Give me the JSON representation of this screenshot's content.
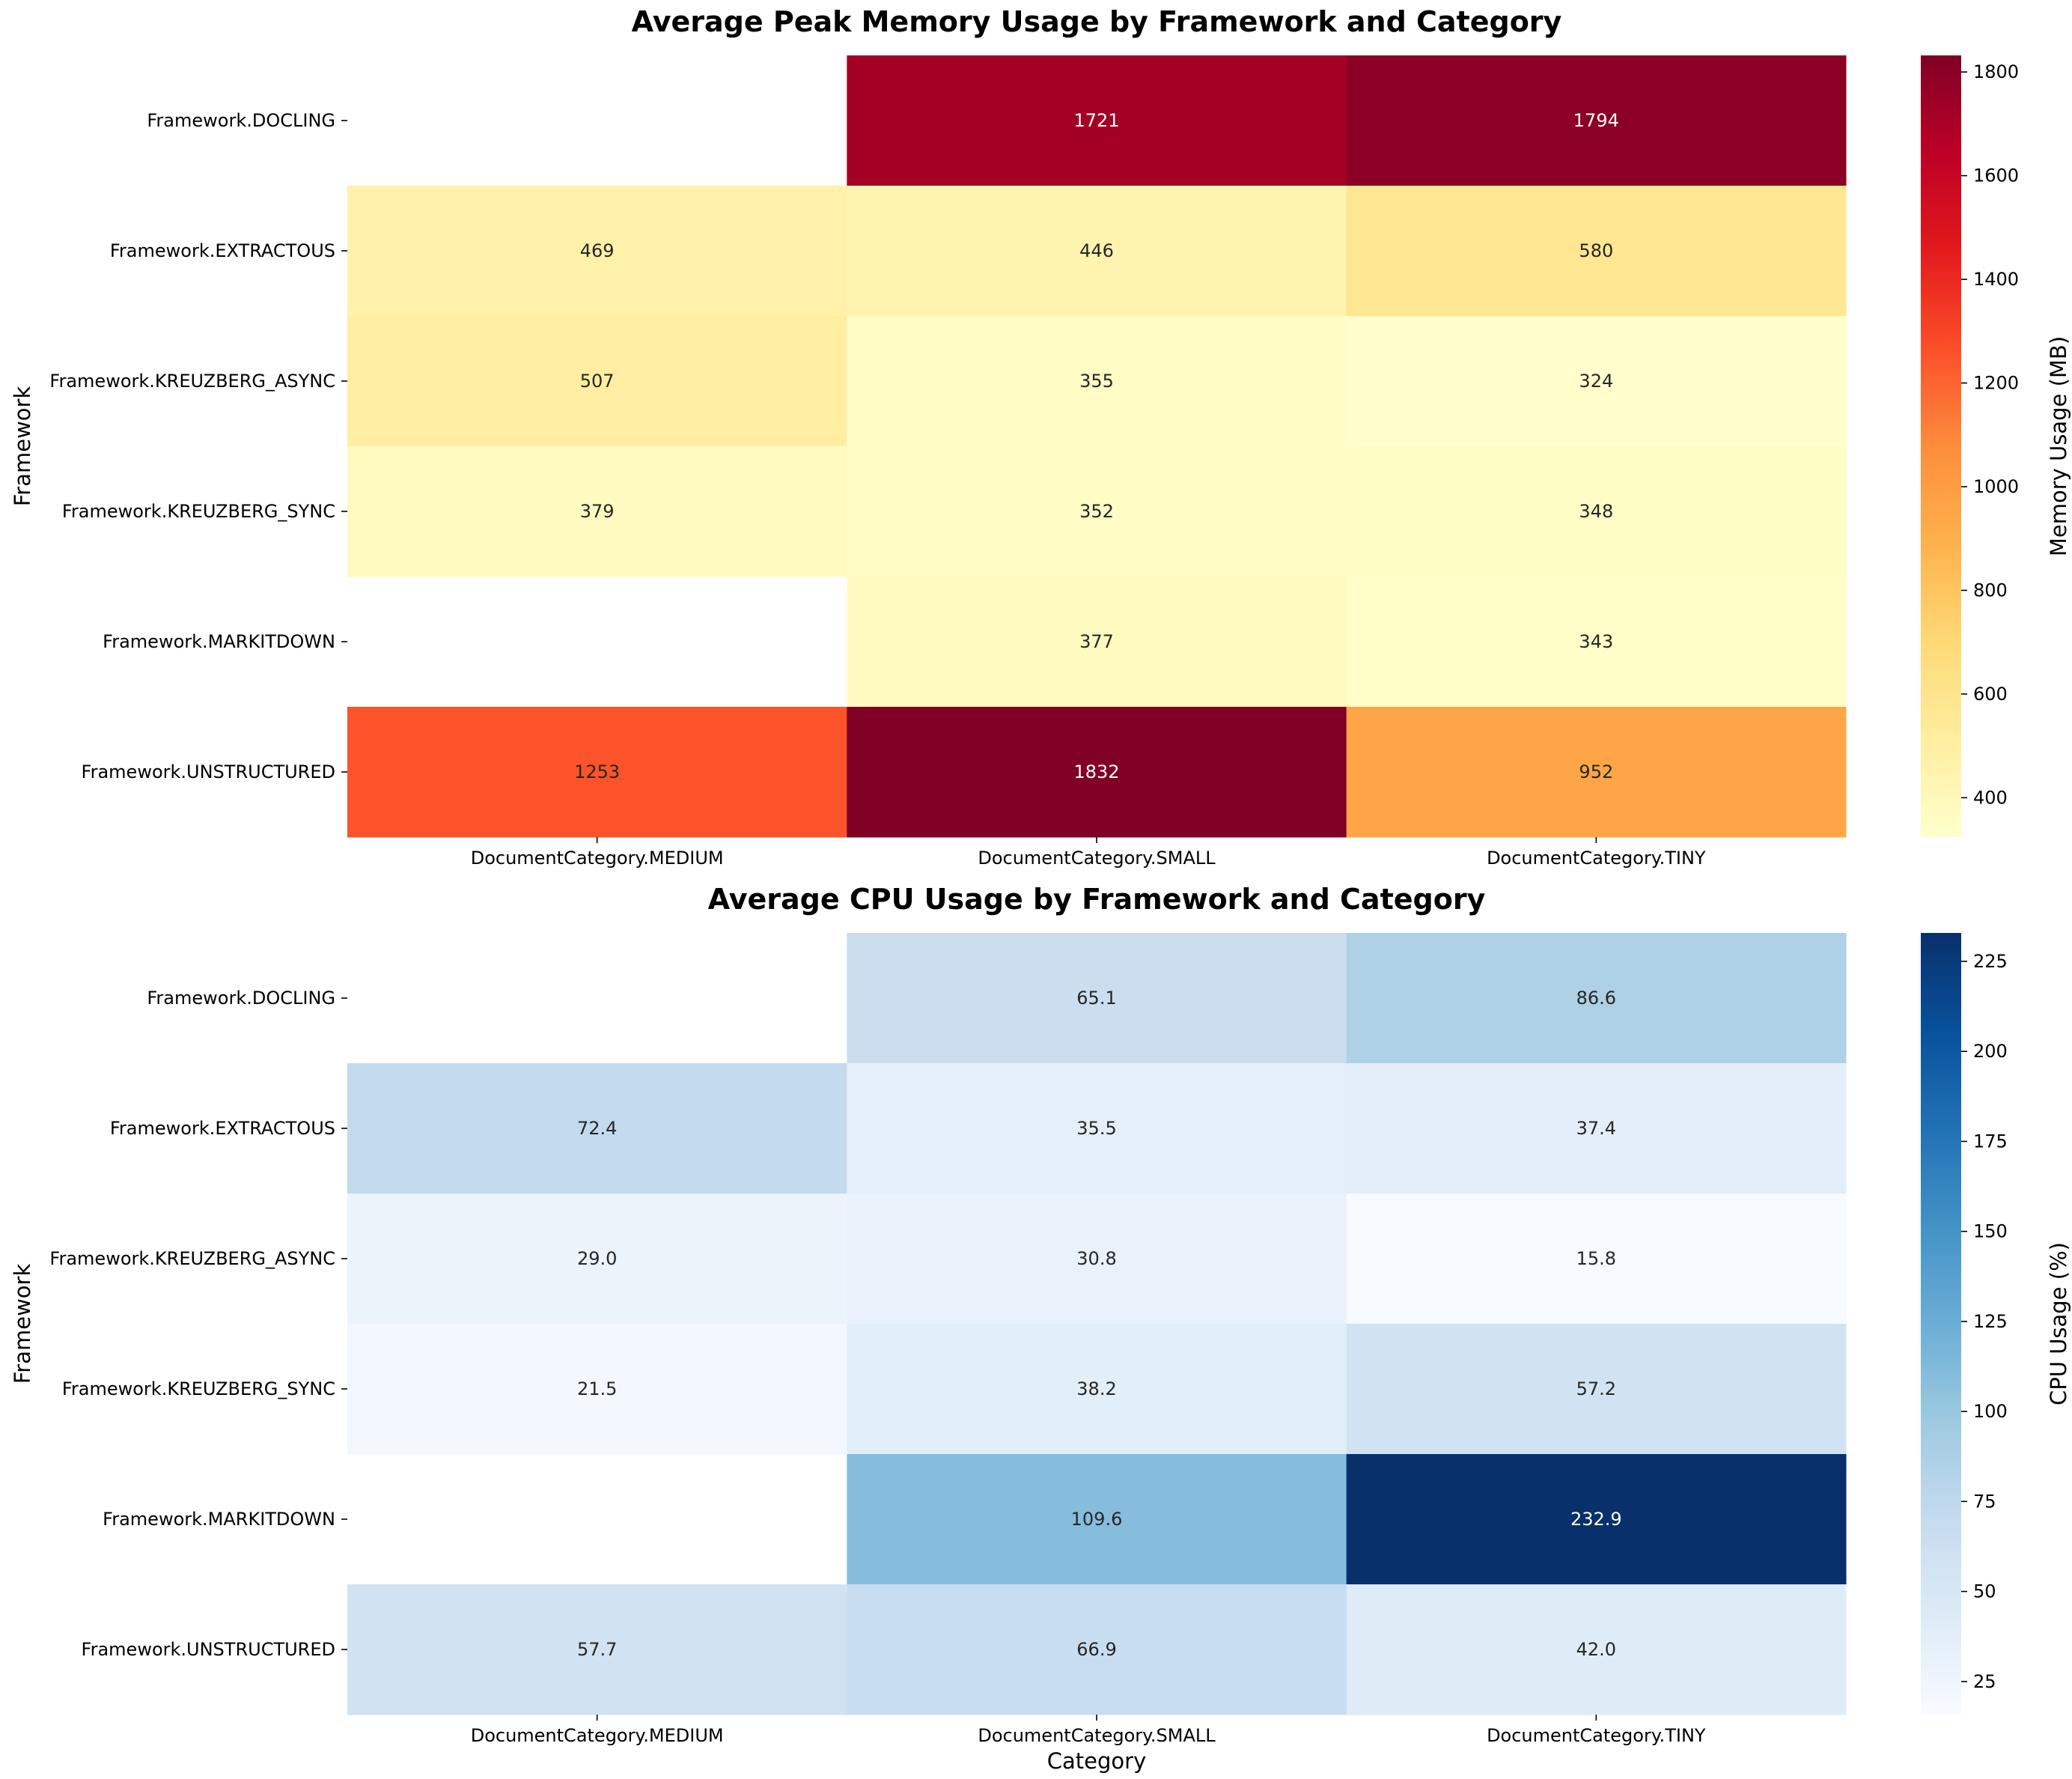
{
  "chart_data": [
    {
      "type": "heatmap",
      "id": "memory",
      "title": "Average Peak Memory Usage by Framework and Category",
      "xlabel": "",
      "ylabel": "Framework",
      "rows": [
        "Framework.DOCLING",
        "Framework.EXTRACTOUS",
        "Framework.KREUZBERG_ASYNC",
        "Framework.KREUZBERG_SYNC",
        "Framework.MARKITDOWN",
        "Framework.UNSTRUCTURED"
      ],
      "columns": [
        "DocumentCategory.MEDIUM",
        "DocumentCategory.SMALL",
        "DocumentCategory.TINY"
      ],
      "values": [
        [
          null,
          1721,
          1794
        ],
        [
          469,
          446,
          580
        ],
        [
          507,
          355,
          324
        ],
        [
          379,
          352,
          348
        ],
        [
          null,
          377,
          343
        ],
        [
          1253,
          1832,
          952
        ]
      ],
      "labels": [
        [
          null,
          "1721",
          "1794"
        ],
        [
          "469",
          "446",
          "580"
        ],
        [
          "507",
          "355",
          "324"
        ],
        [
          "379",
          "352",
          "348"
        ],
        [
          null,
          "377",
          "343"
        ],
        [
          "1253",
          "1832",
          "952"
        ]
      ],
      "colormap": "YlOrRd",
      "colormap_stops": [
        "#ffffcc",
        "#ffeda0",
        "#fed976",
        "#feb24c",
        "#fd8d3c",
        "#fc4e2a",
        "#e31a1c",
        "#bd0026",
        "#800026"
      ],
      "vmin": 324,
      "vmax": 1832,
      "colorbar_label": "Memory Usage (MB)",
      "colorbar_ticks": [
        400,
        600,
        800,
        1000,
        1200,
        1400,
        1600,
        1800
      ],
      "colorbar_tick_labels": [
        "400",
        "600",
        "800",
        "1000",
        "1200",
        "1400",
        "1600",
        "1800"
      ]
    },
    {
      "type": "heatmap",
      "id": "cpu",
      "title": "Average CPU Usage by Framework and Category",
      "xlabel": "Category",
      "ylabel": "Framework",
      "rows": [
        "Framework.DOCLING",
        "Framework.EXTRACTOUS",
        "Framework.KREUZBERG_ASYNC",
        "Framework.KREUZBERG_SYNC",
        "Framework.MARKITDOWN",
        "Framework.UNSTRUCTURED"
      ],
      "columns": [
        "DocumentCategory.MEDIUM",
        "DocumentCategory.SMALL",
        "DocumentCategory.TINY"
      ],
      "values": [
        [
          null,
          65.1,
          86.6
        ],
        [
          72.4,
          35.5,
          37.4
        ],
        [
          29.0,
          30.8,
          15.8
        ],
        [
          21.5,
          38.2,
          57.2
        ],
        [
          null,
          109.6,
          232.9
        ],
        [
          57.7,
          66.9,
          42.0
        ]
      ],
      "labels": [
        [
          null,
          "65.1",
          "86.6"
        ],
        [
          "72.4",
          "35.5",
          "37.4"
        ],
        [
          "29.0",
          "30.8",
          "15.8"
        ],
        [
          "21.5",
          "38.2",
          "57.2"
        ],
        [
          null,
          "109.6",
          "232.9"
        ],
        [
          "57.7",
          "66.9",
          "42.0"
        ]
      ],
      "colormap": "Blues",
      "colormap_stops": [
        "#f7fbff",
        "#deebf7",
        "#c6dbef",
        "#9ecae1",
        "#6baed6",
        "#4292c6",
        "#2171b5",
        "#08519c",
        "#08306b"
      ],
      "vmin": 15.8,
      "vmax": 232.9,
      "colorbar_label": "CPU Usage (%)",
      "colorbar_ticks": [
        25,
        50,
        75,
        100,
        125,
        150,
        175,
        200,
        225
      ],
      "colorbar_tick_labels": [
        "25",
        "50",
        "75",
        "100",
        "125",
        "150",
        "175",
        "200",
        "225"
      ]
    }
  ]
}
